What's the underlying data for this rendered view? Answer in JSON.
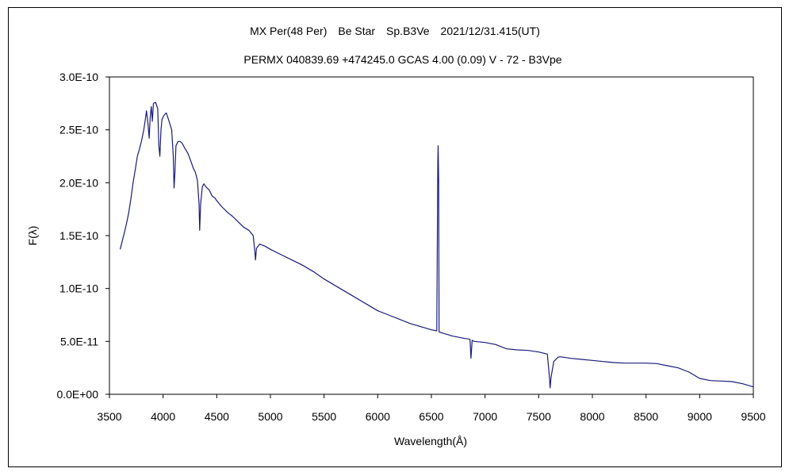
{
  "chart_data": {
    "type": "line",
    "title": "MX Per(48 Per)　Be Star　Sp.B3Ve　2021/12/31.415(UT)",
    "subtitle": "PERMX 040839.69 +474245.0 GCAS 4.00 (0.09) V - 72 - B3Vpe",
    "xlabel": "Wavelength(Å)",
    "ylabel": "F(λ)",
    "xlim": [
      3500,
      9500
    ],
    "ylim": [
      0,
      3e-10
    ],
    "x_ticks": [
      3500,
      4000,
      4500,
      5000,
      5500,
      6000,
      6500,
      7000,
      7500,
      8000,
      8500,
      9000,
      9500
    ],
    "x_tick_labels": [
      "3500",
      "4000",
      "4500",
      "5000",
      "5500",
      "6000",
      "6500",
      "7000",
      "7500",
      "8000",
      "8500",
      "9000",
      "9500"
    ],
    "y_ticks": [
      0,
      5e-11,
      1e-10,
      1.5e-10,
      2e-10,
      2.5e-10,
      3e-10
    ],
    "y_tick_labels": [
      "0.0E+00",
      "5.0E-11",
      "1.0E-10",
      "1.5E-10",
      "2.0E-10",
      "2.5E-10",
      "3.0E-10"
    ],
    "grid": false,
    "line_color": "#1a1a7a",
    "series": [
      {
        "points": [
          [
            3600,
            1.37e-10
          ],
          [
            3620,
            1.45e-10
          ],
          [
            3640,
            1.53e-10
          ],
          [
            3660,
            1.62e-10
          ],
          [
            3680,
            1.72e-10
          ],
          [
            3700,
            1.85e-10
          ],
          [
            3720,
            2e-10
          ],
          [
            3740,
            2.12e-10
          ],
          [
            3760,
            2.25e-10
          ],
          [
            3780,
            2.32e-10
          ],
          [
            3800,
            2.4e-10
          ],
          [
            3820,
            2.5e-10
          ],
          [
            3835,
            2.6e-10
          ],
          [
            3845,
            2.68e-10
          ],
          [
            3860,
            2.55e-10
          ],
          [
            3870,
            2.42e-10
          ],
          [
            3880,
            2.62e-10
          ],
          [
            3890,
            2.72e-10
          ],
          [
            3900,
            2.58e-10
          ],
          [
            3910,
            2.75e-10
          ],
          [
            3930,
            2.76e-10
          ],
          [
            3950,
            2.7e-10
          ],
          [
            3960,
            2.35e-10
          ],
          [
            3970,
            2.25e-10
          ],
          [
            3980,
            2.5e-10
          ],
          [
            3990,
            2.6e-10
          ],
          [
            4010,
            2.64e-10
          ],
          [
            4030,
            2.66e-10
          ],
          [
            4050,
            2.6e-10
          ],
          [
            4080,
            2.5e-10
          ],
          [
            4095,
            2.25e-10
          ],
          [
            4102,
            1.95e-10
          ],
          [
            4110,
            2.1e-10
          ],
          [
            4120,
            2.35e-10
          ],
          [
            4140,
            2.39e-10
          ],
          [
            4160,
            2.39e-10
          ],
          [
            4180,
            2.37e-10
          ],
          [
            4200,
            2.33e-10
          ],
          [
            4230,
            2.28e-10
          ],
          [
            4260,
            2.2e-10
          ],
          [
            4280,
            2.14e-10
          ],
          [
            4300,
            2.1e-10
          ],
          [
            4320,
            2.02e-10
          ],
          [
            4335,
            1.8e-10
          ],
          [
            4341,
            1.55e-10
          ],
          [
            4350,
            1.8e-10
          ],
          [
            4365,
            1.96e-10
          ],
          [
            4380,
            1.99e-10
          ],
          [
            4400,
            1.96e-10
          ],
          [
            4430,
            1.93e-10
          ],
          [
            4460,
            1.87e-10
          ],
          [
            4480,
            1.86e-10
          ],
          [
            4500,
            1.83e-10
          ],
          [
            4550,
            1.77e-10
          ],
          [
            4600,
            1.72e-10
          ],
          [
            4650,
            1.68e-10
          ],
          [
            4700,
            1.63e-10
          ],
          [
            4750,
            1.58e-10
          ],
          [
            4800,
            1.55e-10
          ],
          [
            4840,
            1.5e-10
          ],
          [
            4856,
            1.34e-10
          ],
          [
            4861,
            1.27e-10
          ],
          [
            4870,
            1.38e-10
          ],
          [
            4900,
            1.42e-10
          ],
          [
            4950,
            1.4e-10
          ],
          [
            5000,
            1.37e-10
          ],
          [
            5100,
            1.32e-10
          ],
          [
            5200,
            1.27e-10
          ],
          [
            5300,
            1.22e-10
          ],
          [
            5400,
            1.16e-10
          ],
          [
            5500,
            1.09e-10
          ],
          [
            5600,
            1.03e-10
          ],
          [
            5700,
            9.7e-11
          ],
          [
            5800,
            9.1e-11
          ],
          [
            5900,
            8.5e-11
          ],
          [
            6000,
            7.9e-11
          ],
          [
            6100,
            7.5e-11
          ],
          [
            6200,
            7.1e-11
          ],
          [
            6300,
            6.7e-11
          ],
          [
            6400,
            6.4e-11
          ],
          [
            6500,
            6.1e-11
          ],
          [
            6550,
            6e-11
          ],
          [
            6560,
            2.2e-10
          ],
          [
            6563,
            2.35e-10
          ],
          [
            6568,
            2e-10
          ],
          [
            6572,
            5.9e-11
          ],
          [
            6600,
            5.8e-11
          ],
          [
            6700,
            5.5e-11
          ],
          [
            6800,
            5.3e-11
          ],
          [
            6860,
            5.2e-11
          ],
          [
            6869,
            3.4e-11
          ],
          [
            6880,
            5.1e-11
          ],
          [
            6900,
            5e-11
          ],
          [
            7000,
            4.9e-11
          ],
          [
            7100,
            4.7e-11
          ],
          [
            7200,
            4.3e-11
          ],
          [
            7300,
            4.2e-11
          ],
          [
            7400,
            4.15e-11
          ],
          [
            7500,
            4e-11
          ],
          [
            7580,
            3.8e-11
          ],
          [
            7600,
            1.6e-11
          ],
          [
            7606,
            6e-12
          ],
          [
            7615,
            1.6e-11
          ],
          [
            7640,
            3.1e-11
          ],
          [
            7680,
            3.5e-11
          ],
          [
            7700,
            3.55e-11
          ],
          [
            7800,
            3.4e-11
          ],
          [
            7900,
            3.3e-11
          ],
          [
            8000,
            3.2e-11
          ],
          [
            8100,
            3.1e-11
          ],
          [
            8200,
            3e-11
          ],
          [
            8300,
            2.95e-11
          ],
          [
            8400,
            2.95e-11
          ],
          [
            8500,
            2.95e-11
          ],
          [
            8600,
            2.9e-11
          ],
          [
            8700,
            2.7e-11
          ],
          [
            8800,
            2.5e-11
          ],
          [
            8900,
            2.1e-11
          ],
          [
            9000,
            1.5e-11
          ],
          [
            9100,
            1.3e-11
          ],
          [
            9200,
            1.25e-11
          ],
          [
            9300,
            1.2e-11
          ],
          [
            9400,
            1e-11
          ],
          [
            9500,
            7e-12
          ]
        ]
      }
    ]
  }
}
